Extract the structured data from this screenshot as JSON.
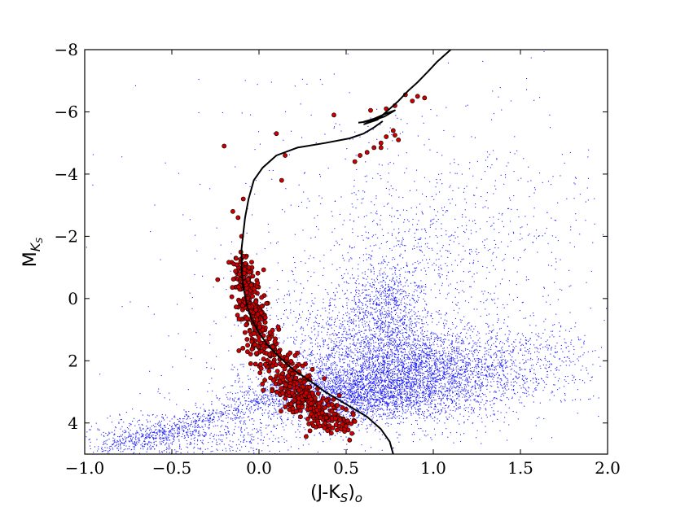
{
  "chart_data": {
    "type": "scatter",
    "xlabel": "(J-K",
    "xlabel_sub": "S",
    "xlabel_close": ")",
    "xlabel_sub2": "o",
    "ylabel": "M",
    "ylabel_sub": "K",
    "ylabel_subsub": "S",
    "xlim": [
      -1.0,
      2.0
    ],
    "ylim": [
      5.0,
      -8.0
    ],
    "y_inverted": true,
    "xticks": [
      {
        "value": -1.0,
        "label": "−1.0"
      },
      {
        "value": -0.5,
        "label": "−0.5"
      },
      {
        "value": 0.0,
        "label": "0.0"
      },
      {
        "value": 0.5,
        "label": "0.5"
      },
      {
        "value": 1.0,
        "label": "1.0"
      },
      {
        "value": 1.5,
        "label": "1.5"
      },
      {
        "value": 2.0,
        "label": "2.0"
      }
    ],
    "yticks": [
      {
        "value": -8,
        "label": "−8"
      },
      {
        "value": -6,
        "label": "−6"
      },
      {
        "value": -4,
        "label": "−4"
      },
      {
        "value": -2,
        "label": "−2"
      },
      {
        "value": 0,
        "label": "0"
      },
      {
        "value": 2,
        "label": "2"
      },
      {
        "value": 4,
        "label": "4"
      }
    ],
    "grid": false,
    "colors": {
      "field": "#1a1aff",
      "members_fill": "#cc0000",
      "members_edge": "#000000",
      "isochrone": "#000000"
    },
    "series": [
      {
        "kind": "field-stars",
        "marker": "dot",
        "description_density": [
          {
            "x": 0.75,
            "y": 2.2,
            "sx": 0.22,
            "sy": 0.9,
            "weight": 0.22
          },
          {
            "x": 1.05,
            "y": 2.5,
            "sx": 0.28,
            "sy": 0.7,
            "weight": 0.16
          },
          {
            "x": 0.6,
            "y": 3.0,
            "sx": 0.2,
            "sy": 0.4,
            "weight": 0.12
          },
          {
            "x": 0.72,
            "y": 0.2,
            "sx": 0.1,
            "sy": 0.8,
            "weight": 0.07
          },
          {
            "x": 0.95,
            "y": -1.5,
            "sx": 0.4,
            "sy": 1.3,
            "weight": 0.07
          },
          {
            "x": 1.4,
            "y": 2.0,
            "sx": 0.3,
            "sy": 0.7,
            "weight": 0.08
          },
          {
            "x": 0.3,
            "y": 3.2,
            "sx": 0.25,
            "sy": 0.6,
            "weight": 0.1
          },
          {
            "x": -0.45,
            "y": 4.4,
            "sx": 0.3,
            "sy": 0.35,
            "weight": 0.07
          },
          {
            "x": 0.4,
            "y": 1.0,
            "sx": 0.25,
            "sy": 0.9,
            "weight": 0.05
          },
          {
            "x": 1.0,
            "y": -3.5,
            "sx": 0.55,
            "sy": 1.8,
            "weight": 0.03
          },
          {
            "x": 0.5,
            "y": 0.0,
            "sx": 1.0,
            "sy": 3.5,
            "weight": 0.03
          }
        ]
      },
      {
        "kind": "isochrone",
        "marker": "line",
        "x": [
          0.77,
          0.75,
          0.7,
          0.62,
          0.5,
          0.38,
          0.28,
          0.2,
          0.12,
          0.05,
          0.0,
          -0.04,
          -0.07,
          -0.09,
          -0.1,
          -0.1,
          -0.09,
          -0.08,
          -0.06,
          -0.03,
          0.02,
          0.1,
          0.22,
          0.38,
          0.52,
          0.6,
          0.66,
          0.71
        ],
        "y": [
          5.0,
          4.6,
          4.2,
          3.8,
          3.4,
          3.0,
          2.6,
          2.3,
          1.9,
          1.5,
          1.1,
          0.7,
          0.2,
          -0.4,
          -1.0,
          -1.6,
          -2.1,
          -2.6,
          -3.2,
          -3.8,
          -4.2,
          -4.6,
          -4.85,
          -5.0,
          -5.15,
          -5.3,
          -5.5,
          -5.7
        ]
      },
      {
        "kind": "giant-branch",
        "marker": "line",
        "x": [
          0.6,
          0.68,
          0.73,
          0.8,
          0.86,
          0.91,
          0.97,
          1.02,
          1.1
        ],
        "y": [
          -5.6,
          -5.75,
          -6.0,
          -6.35,
          -6.7,
          -6.95,
          -7.3,
          -7.6,
          -8.0
        ]
      },
      {
        "kind": "agb-loop",
        "marker": "line",
        "x": [
          0.57,
          0.64,
          0.72,
          0.78,
          0.73,
          0.66,
          0.6
        ],
        "y": [
          -5.65,
          -5.7,
          -5.85,
          -6.05,
          -5.95,
          -5.78,
          -5.68
        ]
      },
      {
        "kind": "cluster-members",
        "marker": "circle",
        "main_sequence_ridge": {
          "x": [
            -0.1,
            -0.08,
            -0.06,
            -0.03,
            0.0,
            0.04,
            0.08,
            0.13,
            0.18,
            0.23,
            0.28,
            0.33,
            0.38,
            0.43
          ],
          "y": [
            -1.3,
            -0.6,
            0.0,
            0.5,
            1.0,
            1.5,
            1.9,
            2.3,
            2.7,
            3.0,
            3.3,
            3.6,
            3.9,
            4.2
          ],
          "width_x": 0.06
        },
        "outliers": [
          {
            "x": -0.2,
            "y": -4.9
          },
          {
            "x": 0.1,
            "y": -5.3
          },
          {
            "x": 0.15,
            "y": -4.6
          },
          {
            "x": 0.13,
            "y": -3.8
          },
          {
            "x": -0.09,
            "y": -3.2
          },
          {
            "x": -0.15,
            "y": -2.8
          },
          {
            "x": -0.12,
            "y": -2.6
          },
          {
            "x": -0.1,
            "y": -2.0
          },
          {
            "x": 0.43,
            "y": -5.9
          },
          {
            "x": 0.55,
            "y": -4.4
          },
          {
            "x": 0.58,
            "y": -4.6
          },
          {
            "x": 0.62,
            "y": -4.7
          },
          {
            "x": 0.66,
            "y": -4.85
          },
          {
            "x": 0.7,
            "y": -5.0
          },
          {
            "x": 0.73,
            "y": -5.2
          },
          {
            "x": 0.77,
            "y": -5.4
          },
          {
            "x": 0.78,
            "y": -5.25
          },
          {
            "x": 0.64,
            "y": -6.05
          },
          {
            "x": 0.73,
            "y": -6.1
          },
          {
            "x": 0.78,
            "y": -6.2
          },
          {
            "x": 0.84,
            "y": -6.55
          },
          {
            "x": 0.88,
            "y": -6.35
          },
          {
            "x": 0.91,
            "y": -6.5
          },
          {
            "x": 0.95,
            "y": -6.45
          },
          {
            "x": 0.8,
            "y": -5.1
          },
          {
            "x": 0.7,
            "y": -4.85
          },
          {
            "x": 0.52,
            "y": 4.55
          },
          {
            "x": 0.5,
            "y": 4.1
          },
          {
            "x": 0.55,
            "y": 3.95
          }
        ]
      }
    ]
  }
}
